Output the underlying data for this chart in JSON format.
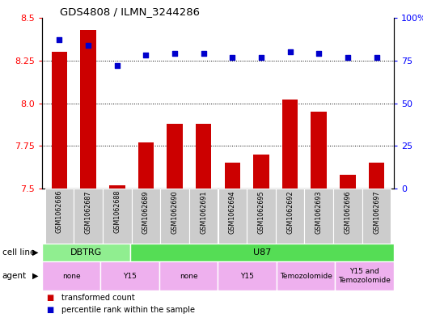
{
  "title": "GDS4808 / ILMN_3244286",
  "samples": [
    "GSM1062686",
    "GSM1062687",
    "GSM1062688",
    "GSM1062689",
    "GSM1062690",
    "GSM1062691",
    "GSM1062694",
    "GSM1062695",
    "GSM1062692",
    "GSM1062693",
    "GSM1062696",
    "GSM1062697"
  ],
  "transformed_count": [
    8.3,
    8.43,
    7.52,
    7.77,
    7.88,
    7.88,
    7.65,
    7.7,
    8.02,
    7.95,
    7.58,
    7.65
  ],
  "percentile_rank": [
    87,
    84,
    72,
    78,
    79,
    79,
    77,
    77,
    80,
    79,
    77,
    77
  ],
  "ylim_left": [
    7.5,
    8.5
  ],
  "ylim_right": [
    0,
    100
  ],
  "yticks_left": [
    7.5,
    7.75,
    8.0,
    8.25,
    8.5
  ],
  "yticks_right": [
    0,
    25,
    50,
    75,
    100
  ],
  "cell_line_groups": [
    {
      "label": "DBTRG",
      "start": 0,
      "end": 3,
      "color": "#90EE90"
    },
    {
      "label": "U87",
      "start": 3,
      "end": 12,
      "color": "#55DD55"
    }
  ],
  "agent_groups": [
    {
      "label": "none",
      "start": 0,
      "end": 2,
      "color": "#EEB0EE"
    },
    {
      "label": "Y15",
      "start": 2,
      "end": 4,
      "color": "#EEB0EE"
    },
    {
      "label": "none",
      "start": 4,
      "end": 6,
      "color": "#EEB0EE"
    },
    {
      "label": "Y15",
      "start": 6,
      "end": 8,
      "color": "#EEB0EE"
    },
    {
      "label": "Temozolomide",
      "start": 8,
      "end": 10,
      "color": "#EEB0EE"
    },
    {
      "label": "Y15 and\nTemozolomide",
      "start": 10,
      "end": 12,
      "color": "#EEB0EE"
    }
  ],
  "bar_color": "#CC0000",
  "dot_color": "#0000CC",
  "bar_width": 0.55,
  "legend_items": [
    {
      "label": "transformed count",
      "color": "#CC0000"
    },
    {
      "label": "percentile rank within the sample",
      "color": "#0000CC"
    }
  ],
  "fig_width": 5.23,
  "fig_height": 3.93,
  "dpi": 100
}
